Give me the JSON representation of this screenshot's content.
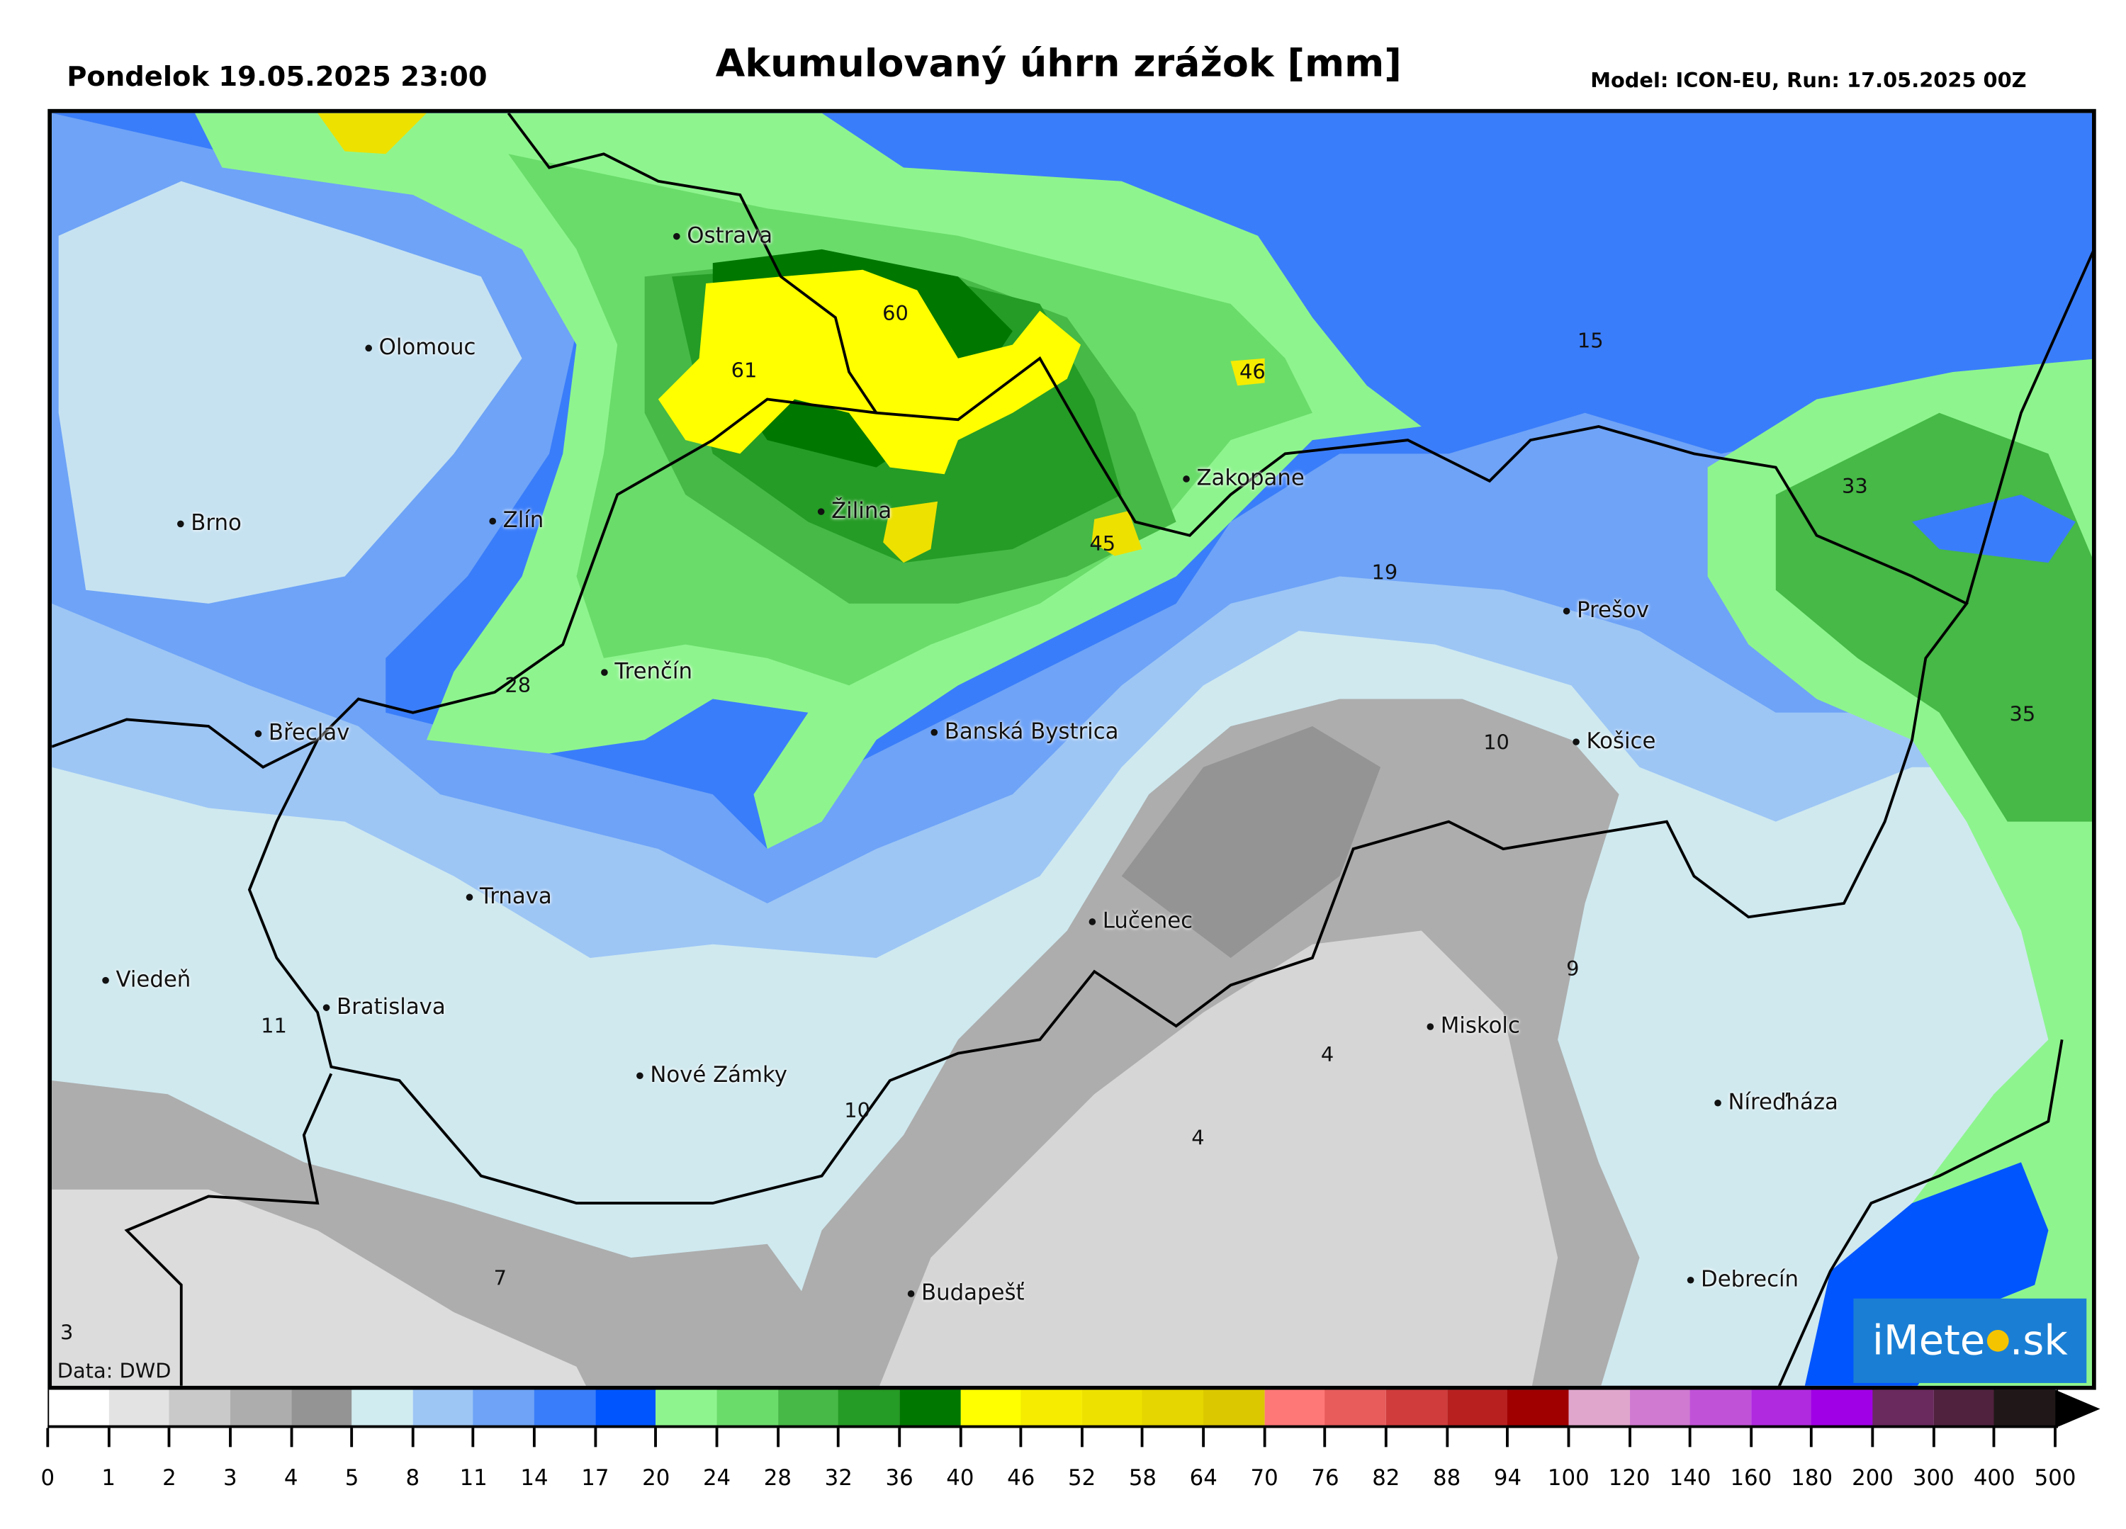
{
  "header": {
    "date": "Pondelok 19.05.2025 23:00",
    "title": "Akumulovaný úhrn zrážok [mm]",
    "model": "Model: ICON-EU, Run: 17.05.2025 00Z"
  },
  "map": {
    "credit": "Data: DWD",
    "logo": {
      "pre": "iMete",
      "post": ".sk"
    },
    "cities": [
      "Ostrava",
      "Olomouc",
      "Brno",
      "Zlín",
      "Žilina",
      "Zakopane",
      "Trenčín",
      "Břeclav",
      "Banská Bystrica",
      "Prešov",
      "Košice",
      "Trnava",
      "Lučenec",
      "Viedeň",
      "Bratislava",
      "Miskolc",
      "Nové Zámky",
      "Níreďháza",
      "Budapešť",
      "Debrecín"
    ],
    "values": [
      "60",
      "61",
      "46",
      "15",
      "33",
      "45",
      "19",
      "28",
      "35",
      "10",
      "9",
      "11",
      "4",
      "10",
      "4",
      "7",
      "3"
    ]
  },
  "colorbar": {
    "ticks": [
      "0",
      "1",
      "2",
      "3",
      "4",
      "5",
      "8",
      "11",
      "14",
      "17",
      "20",
      "24",
      "28",
      "32",
      "36",
      "40",
      "46",
      "52",
      "58",
      "64",
      "70",
      "76",
      "82",
      "88",
      "94",
      "100",
      "120",
      "140",
      "160",
      "180",
      "200",
      "300",
      "400",
      "500"
    ],
    "colors": [
      "#ffffff",
      "#e3e3e3",
      "#c9c9c9",
      "#adadad",
      "#949494",
      "#d0ecf0",
      "#9dc6f5",
      "#6ea3f7",
      "#3a7dfa",
      "#0055ff",
      "#8ef58e",
      "#6adc6a",
      "#46b946",
      "#259c25",
      "#007800",
      "#ffff00",
      "#f5ec00",
      "#ede100",
      "#e5d500",
      "#dcc800",
      "#ff7878",
      "#e85c5c",
      "#d03c3c",
      "#b82020",
      "#a00000",
      "#e0a6cc",
      "#d07ad2",
      "#c052d8",
      "#b02ae0",
      "#a000e6",
      "#6a2a5e",
      "#50223e",
      "#201818"
    ]
  }
}
